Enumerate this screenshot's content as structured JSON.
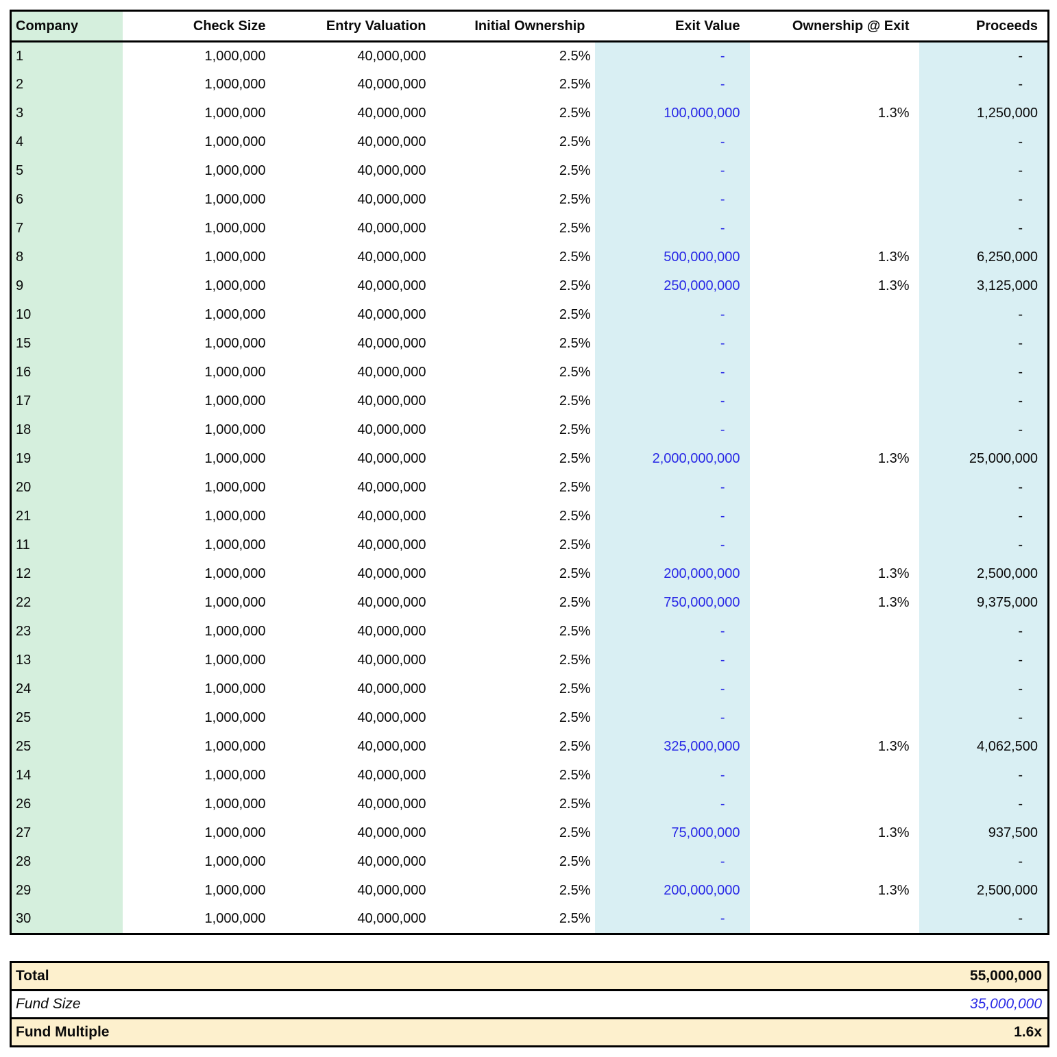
{
  "colors": {
    "company_column_bg": "#d5efdd",
    "highlight_column_bg": "#d9eff3",
    "summary_row_bg": "#fdf0cd",
    "input_text_blue": "#2828e6",
    "text_ink": "#0a0a0a",
    "border_black": "#000000"
  },
  "table": {
    "headers": [
      {
        "key": "company",
        "label": "Company"
      },
      {
        "key": "check_size",
        "label": "Check Size"
      },
      {
        "key": "entry_valuation",
        "label": "Entry Valuation"
      },
      {
        "key": "initial_ownership",
        "label": "Initial Ownership"
      },
      {
        "key": "exit_value",
        "label": "Exit Value"
      },
      {
        "key": "ownership_at_exit",
        "label": "Ownership @ Exit"
      },
      {
        "key": "proceeds",
        "label": "Proceeds"
      }
    ],
    "rows": [
      {
        "company": "1",
        "check_size": "1,000,000",
        "entry_valuation": "40,000,000",
        "initial_ownership": "2.5%",
        "exit_value": "-",
        "ownership_at_exit": "",
        "proceeds": "-"
      },
      {
        "company": "2",
        "check_size": "1,000,000",
        "entry_valuation": "40,000,000",
        "initial_ownership": "2.5%",
        "exit_value": "-",
        "ownership_at_exit": "",
        "proceeds": "-"
      },
      {
        "company": "3",
        "check_size": "1,000,000",
        "entry_valuation": "40,000,000",
        "initial_ownership": "2.5%",
        "exit_value": "100,000,000",
        "ownership_at_exit": "1.3%",
        "proceeds": "1,250,000"
      },
      {
        "company": "4",
        "check_size": "1,000,000",
        "entry_valuation": "40,000,000",
        "initial_ownership": "2.5%",
        "exit_value": "-",
        "ownership_at_exit": "",
        "proceeds": "-"
      },
      {
        "company": "5",
        "check_size": "1,000,000",
        "entry_valuation": "40,000,000",
        "initial_ownership": "2.5%",
        "exit_value": "-",
        "ownership_at_exit": "",
        "proceeds": "-"
      },
      {
        "company": "6",
        "check_size": "1,000,000",
        "entry_valuation": "40,000,000",
        "initial_ownership": "2.5%",
        "exit_value": "-",
        "ownership_at_exit": "",
        "proceeds": "-"
      },
      {
        "company": "7",
        "check_size": "1,000,000",
        "entry_valuation": "40,000,000",
        "initial_ownership": "2.5%",
        "exit_value": "-",
        "ownership_at_exit": "",
        "proceeds": "-"
      },
      {
        "company": "8",
        "check_size": "1,000,000",
        "entry_valuation": "40,000,000",
        "initial_ownership": "2.5%",
        "exit_value": "500,000,000",
        "ownership_at_exit": "1.3%",
        "proceeds": "6,250,000"
      },
      {
        "company": "9",
        "check_size": "1,000,000",
        "entry_valuation": "40,000,000",
        "initial_ownership": "2.5%",
        "exit_value": "250,000,000",
        "ownership_at_exit": "1.3%",
        "proceeds": "3,125,000"
      },
      {
        "company": "10",
        "check_size": "1,000,000",
        "entry_valuation": "40,000,000",
        "initial_ownership": "2.5%",
        "exit_value": "-",
        "ownership_at_exit": "",
        "proceeds": "-"
      },
      {
        "company": "15",
        "check_size": "1,000,000",
        "entry_valuation": "40,000,000",
        "initial_ownership": "2.5%",
        "exit_value": "-",
        "ownership_at_exit": "",
        "proceeds": "-"
      },
      {
        "company": "16",
        "check_size": "1,000,000",
        "entry_valuation": "40,000,000",
        "initial_ownership": "2.5%",
        "exit_value": "-",
        "ownership_at_exit": "",
        "proceeds": "-"
      },
      {
        "company": "17",
        "check_size": "1,000,000",
        "entry_valuation": "40,000,000",
        "initial_ownership": "2.5%",
        "exit_value": "-",
        "ownership_at_exit": "",
        "proceeds": "-"
      },
      {
        "company": "18",
        "check_size": "1,000,000",
        "entry_valuation": "40,000,000",
        "initial_ownership": "2.5%",
        "exit_value": "-",
        "ownership_at_exit": "",
        "proceeds": "-"
      },
      {
        "company": "19",
        "check_size": "1,000,000",
        "entry_valuation": "40,000,000",
        "initial_ownership": "2.5%",
        "exit_value": "2,000,000,000",
        "ownership_at_exit": "1.3%",
        "proceeds": "25,000,000"
      },
      {
        "company": "20",
        "check_size": "1,000,000",
        "entry_valuation": "40,000,000",
        "initial_ownership": "2.5%",
        "exit_value": "-",
        "ownership_at_exit": "",
        "proceeds": "-"
      },
      {
        "company": "21",
        "check_size": "1,000,000",
        "entry_valuation": "40,000,000",
        "initial_ownership": "2.5%",
        "exit_value": "-",
        "ownership_at_exit": "",
        "proceeds": "-"
      },
      {
        "company": "11",
        "check_size": "1,000,000",
        "entry_valuation": "40,000,000",
        "initial_ownership": "2.5%",
        "exit_value": "-",
        "ownership_at_exit": "",
        "proceeds": "-"
      },
      {
        "company": "12",
        "check_size": "1,000,000",
        "entry_valuation": "40,000,000",
        "initial_ownership": "2.5%",
        "exit_value": "200,000,000",
        "ownership_at_exit": "1.3%",
        "proceeds": "2,500,000"
      },
      {
        "company": "22",
        "check_size": "1,000,000",
        "entry_valuation": "40,000,000",
        "initial_ownership": "2.5%",
        "exit_value": "750,000,000",
        "ownership_at_exit": "1.3%",
        "proceeds": "9,375,000"
      },
      {
        "company": "23",
        "check_size": "1,000,000",
        "entry_valuation": "40,000,000",
        "initial_ownership": "2.5%",
        "exit_value": "-",
        "ownership_at_exit": "",
        "proceeds": "-"
      },
      {
        "company": "13",
        "check_size": "1,000,000",
        "entry_valuation": "40,000,000",
        "initial_ownership": "2.5%",
        "exit_value": "-",
        "ownership_at_exit": "",
        "proceeds": "-"
      },
      {
        "company": "24",
        "check_size": "1,000,000",
        "entry_valuation": "40,000,000",
        "initial_ownership": "2.5%",
        "exit_value": "-",
        "ownership_at_exit": "",
        "proceeds": "-"
      },
      {
        "company": "25",
        "check_size": "1,000,000",
        "entry_valuation": "40,000,000",
        "initial_ownership": "2.5%",
        "exit_value": "-",
        "ownership_at_exit": "",
        "proceeds": "-"
      },
      {
        "company": "25",
        "check_size": "1,000,000",
        "entry_valuation": "40,000,000",
        "initial_ownership": "2.5%",
        "exit_value": "325,000,000",
        "ownership_at_exit": "1.3%",
        "proceeds": "4,062,500"
      },
      {
        "company": "14",
        "check_size": "1,000,000",
        "entry_valuation": "40,000,000",
        "initial_ownership": "2.5%",
        "exit_value": "-",
        "ownership_at_exit": "",
        "proceeds": "-"
      },
      {
        "company": "26",
        "check_size": "1,000,000",
        "entry_valuation": "40,000,000",
        "initial_ownership": "2.5%",
        "exit_value": "-",
        "ownership_at_exit": "",
        "proceeds": "-"
      },
      {
        "company": "27",
        "check_size": "1,000,000",
        "entry_valuation": "40,000,000",
        "initial_ownership": "2.5%",
        "exit_value": "75,000,000",
        "ownership_at_exit": "1.3%",
        "proceeds": "937,500"
      },
      {
        "company": "28",
        "check_size": "1,000,000",
        "entry_valuation": "40,000,000",
        "initial_ownership": "2.5%",
        "exit_value": "-",
        "ownership_at_exit": "",
        "proceeds": "-"
      },
      {
        "company": "29",
        "check_size": "1,000,000",
        "entry_valuation": "40,000,000",
        "initial_ownership": "2.5%",
        "exit_value": "200,000,000",
        "ownership_at_exit": "1.3%",
        "proceeds": "2,500,000"
      },
      {
        "company": "30",
        "check_size": "1,000,000",
        "entry_valuation": "40,000,000",
        "initial_ownership": "2.5%",
        "exit_value": "-",
        "ownership_at_exit": "",
        "proceeds": "-"
      }
    ]
  },
  "summary": {
    "total_label": "Total",
    "total_value": "55,000,000",
    "fund_size_label": "Fund Size",
    "fund_size_value": "35,000,000",
    "fund_multiple_label": "Fund Multiple",
    "fund_multiple_value": "1.6x"
  }
}
